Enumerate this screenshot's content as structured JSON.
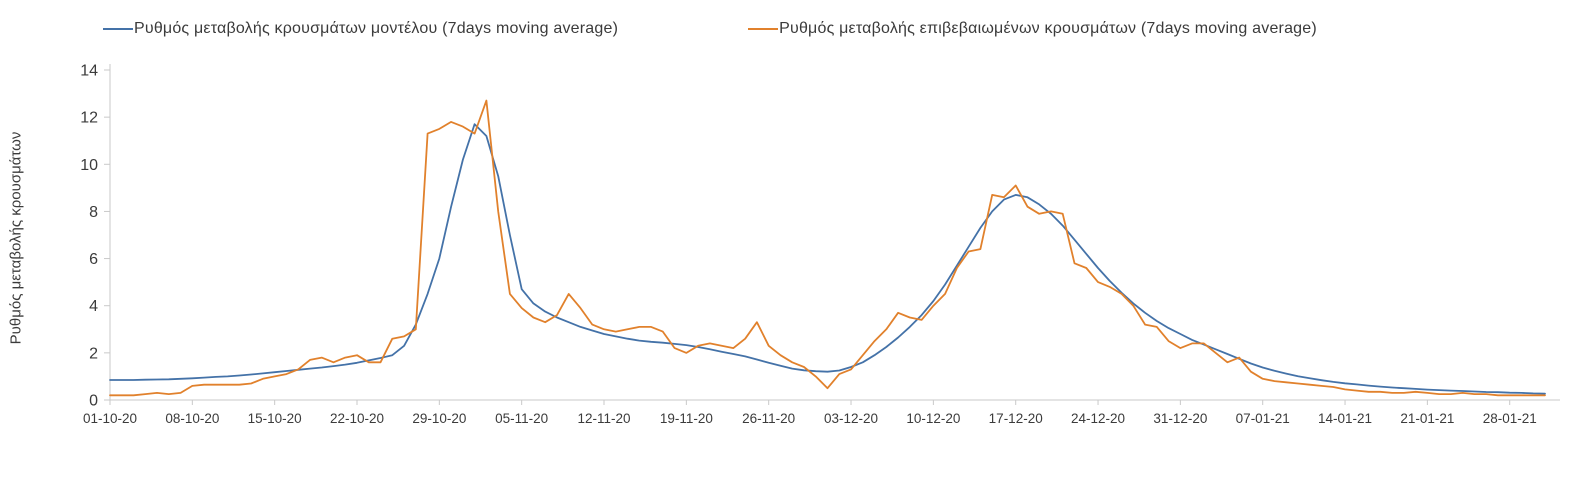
{
  "chart_data": {
    "type": "line",
    "title": "",
    "xlabel": "",
    "ylabel": "Ρυθμός μεταβολής κρουσμάτων",
    "ylim": [
      0,
      14
    ],
    "yticks": [
      0,
      2,
      4,
      6,
      8,
      10,
      12,
      14
    ],
    "grid": false,
    "legend_position": "top",
    "x_unit": "date",
    "x_start": "01-10-20",
    "x_end": "31-01-21",
    "x_step_days": 1,
    "xtick_labels": [
      "01-10-20",
      "08-10-20",
      "15-10-20",
      "22-10-20",
      "29-10-20",
      "05-11-20",
      "12-11-20",
      "19-11-20",
      "26-11-20",
      "03-12-20",
      "10-12-20",
      "17-12-20",
      "24-12-20",
      "31-12-20",
      "07-01-21",
      "14-01-21",
      "21-01-21",
      "28-01-21"
    ],
    "xtick_indices": [
      0,
      7,
      14,
      21,
      28,
      35,
      42,
      49,
      56,
      63,
      70,
      77,
      84,
      91,
      98,
      105,
      112,
      119
    ],
    "axis_color": "#c9c9c9",
    "text_color": "#3b3b3b",
    "series": [
      {
        "key": "model",
        "name": "Ρυθμός μεταβολής κρουσμάτων μοντέλου (7days moving average)",
        "color": "#4472a8",
        "values": [
          0.85,
          0.85,
          0.85,
          0.86,
          0.87,
          0.88,
          0.9,
          0.92,
          0.95,
          0.98,
          1.0,
          1.04,
          1.08,
          1.13,
          1.18,
          1.23,
          1.28,
          1.33,
          1.38,
          1.44,
          1.5,
          1.58,
          1.68,
          1.78,
          1.9,
          2.3,
          3.2,
          4.5,
          6.0,
          8.2,
          10.2,
          11.7,
          11.2,
          9.5,
          7.0,
          4.7,
          4.1,
          3.75,
          3.5,
          3.3,
          3.1,
          2.95,
          2.8,
          2.7,
          2.6,
          2.52,
          2.47,
          2.43,
          2.38,
          2.33,
          2.25,
          2.15,
          2.05,
          1.95,
          1.85,
          1.72,
          1.58,
          1.45,
          1.33,
          1.26,
          1.22,
          1.2,
          1.25,
          1.4,
          1.6,
          1.9,
          2.25,
          2.65,
          3.1,
          3.6,
          4.2,
          4.9,
          5.7,
          6.5,
          7.3,
          8.0,
          8.5,
          8.7,
          8.6,
          8.3,
          7.9,
          7.4,
          6.8,
          6.2,
          5.6,
          5.05,
          4.55,
          4.1,
          3.7,
          3.35,
          3.05,
          2.8,
          2.55,
          2.35,
          2.15,
          1.95,
          1.75,
          1.55,
          1.38,
          1.24,
          1.12,
          1.01,
          0.92,
          0.84,
          0.77,
          0.71,
          0.66,
          0.61,
          0.57,
          0.53,
          0.5,
          0.47,
          0.44,
          0.42,
          0.4,
          0.38,
          0.36,
          0.34,
          0.33,
          0.31,
          0.3,
          0.28,
          0.27
        ]
      },
      {
        "key": "confirmed",
        "name": "Ρυθμός μεταβολής επιβεβαιωμένων κρουσμάτων (7days moving average)",
        "color": "#e1812c",
        "values": [
          0.2,
          0.2,
          0.2,
          0.25,
          0.3,
          0.25,
          0.3,
          0.6,
          0.65,
          0.65,
          0.65,
          0.65,
          0.7,
          0.9,
          1.0,
          1.1,
          1.3,
          1.7,
          1.8,
          1.6,
          1.8,
          1.9,
          1.6,
          1.6,
          2.6,
          2.7,
          3.0,
          11.3,
          11.5,
          11.8,
          11.6,
          11.3,
          12.7,
          8.0,
          4.5,
          3.9,
          3.5,
          3.3,
          3.6,
          4.5,
          3.9,
          3.2,
          3.0,
          2.9,
          3.0,
          3.1,
          3.1,
          2.9,
          2.2,
          2.0,
          2.3,
          2.4,
          2.3,
          2.2,
          2.6,
          3.3,
          2.3,
          1.9,
          1.6,
          1.4,
          1.0,
          0.5,
          1.1,
          1.3,
          1.9,
          2.5,
          3.0,
          3.7,
          3.5,
          3.4,
          4.0,
          4.5,
          5.6,
          6.3,
          6.4,
          8.7,
          8.6,
          9.1,
          8.2,
          7.9,
          8.0,
          7.9,
          5.8,
          5.6,
          5.0,
          4.8,
          4.5,
          4.0,
          3.2,
          3.1,
          2.5,
          2.2,
          2.4,
          2.4,
          2.0,
          1.6,
          1.8,
          1.2,
          0.9,
          0.8,
          0.75,
          0.7,
          0.65,
          0.6,
          0.55,
          0.45,
          0.4,
          0.35,
          0.35,
          0.3,
          0.3,
          0.35,
          0.3,
          0.25,
          0.25,
          0.3,
          0.25,
          0.25,
          0.2,
          0.2,
          0.2,
          0.2,
          0.2
        ]
      }
    ]
  }
}
